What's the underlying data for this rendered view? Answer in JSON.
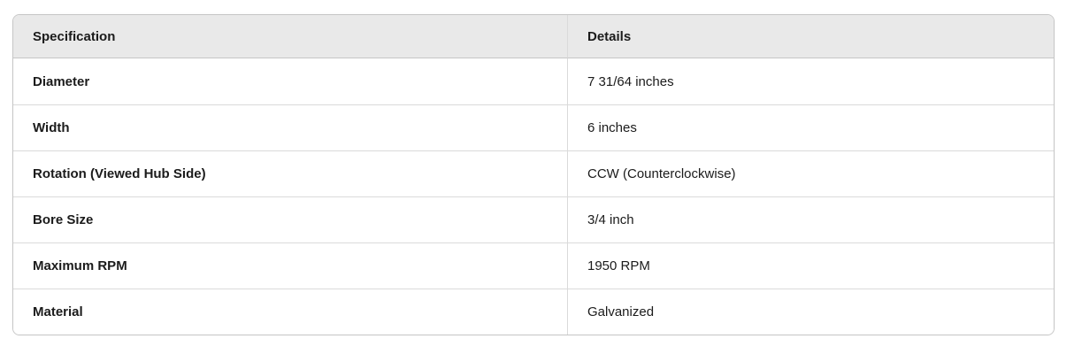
{
  "colors": {
    "header_bg": "#e9e9e9",
    "header_border": "#c6c6c6",
    "border": "#c6c6c6",
    "divider": "#dadada",
    "text": "#1b1b1b"
  },
  "table": {
    "columns": [
      {
        "label": "Specification"
      },
      {
        "label": "Details"
      }
    ],
    "rows": [
      {
        "spec": "Diameter",
        "detail": "7 31/64 inches"
      },
      {
        "spec": "Width",
        "detail": "6 inches"
      },
      {
        "spec": "Rotation (Viewed Hub Side)",
        "detail": "CCW (Counterclockwise)"
      },
      {
        "spec": "Bore Size",
        "detail": "3/4 inch"
      },
      {
        "spec": "Maximum RPM",
        "detail": "1950 RPM"
      },
      {
        "spec": "Material",
        "detail": "Galvanized"
      }
    ]
  }
}
